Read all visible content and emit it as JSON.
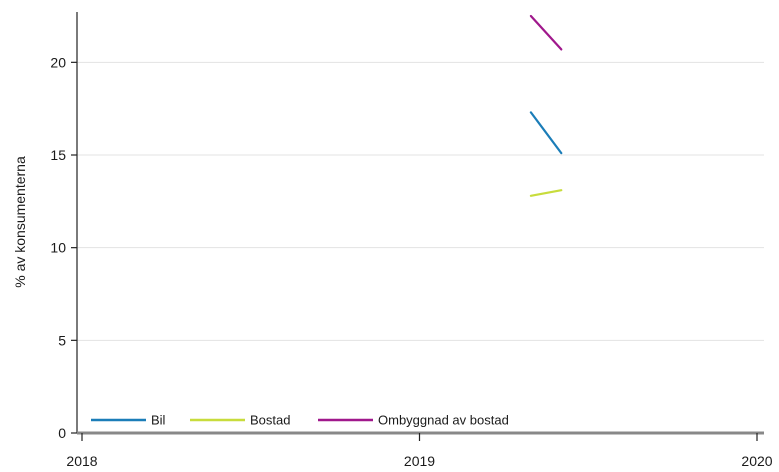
{
  "chart_data": {
    "type": "line",
    "title": "",
    "xlabel": "",
    "ylabel": "% av konsumenterna",
    "xlim": [
      2018,
      2020
    ],
    "ylim": [
      0,
      22.5
    ],
    "x_ticks": [
      "2018",
      "2019",
      "2020"
    ],
    "y_ticks": [
      "0",
      "5",
      "10",
      "15",
      "20"
    ],
    "grid": true,
    "legend": "bottom-left",
    "series": [
      {
        "name": "Bil",
        "color": "#1b7db8",
        "x": [
          2019.33,
          2019.42
        ],
        "y": [
          17.3,
          15.1
        ]
      },
      {
        "name": "Bostad",
        "color": "#c8dc3c",
        "x": [
          2019.33,
          2019.42
        ],
        "y": [
          12.8,
          13.1
        ]
      },
      {
        "name": "Ombyggnad av bostad",
        "color": "#a0188c",
        "x": [
          2019.33,
          2019.42
        ],
        "y": [
          22.5,
          20.7
        ]
      }
    ]
  }
}
